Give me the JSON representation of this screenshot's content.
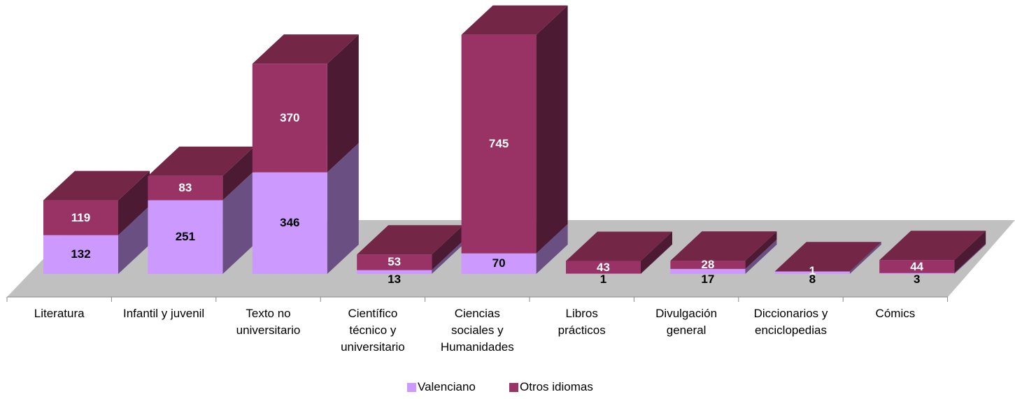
{
  "chart_data": {
    "type": "bar3d_stacked",
    "categories": [
      "Literatura",
      "Infantil y juvenil",
      "Texto no\nuniversitario",
      "Científico\ntécnico y\nuniversitario",
      "Ciencias\nsociales y\nHumanidades",
      "Libros\nprácticos",
      "Divulgación\ngeneral",
      "Diccionarios y\nenciclopedias",
      "Cómics"
    ],
    "series": [
      {
        "name": "Valenciano",
        "color": "#cc99ff",
        "values": [
          132,
          251,
          346,
          13,
          70,
          1,
          17,
          8,
          3
        ]
      },
      {
        "name": "Otros idiomas",
        "color": "#993366",
        "values": [
          119,
          83,
          370,
          53,
          745,
          43,
          28,
          1,
          44
        ]
      }
    ],
    "ylim": [
      0,
      900
    ]
  }
}
